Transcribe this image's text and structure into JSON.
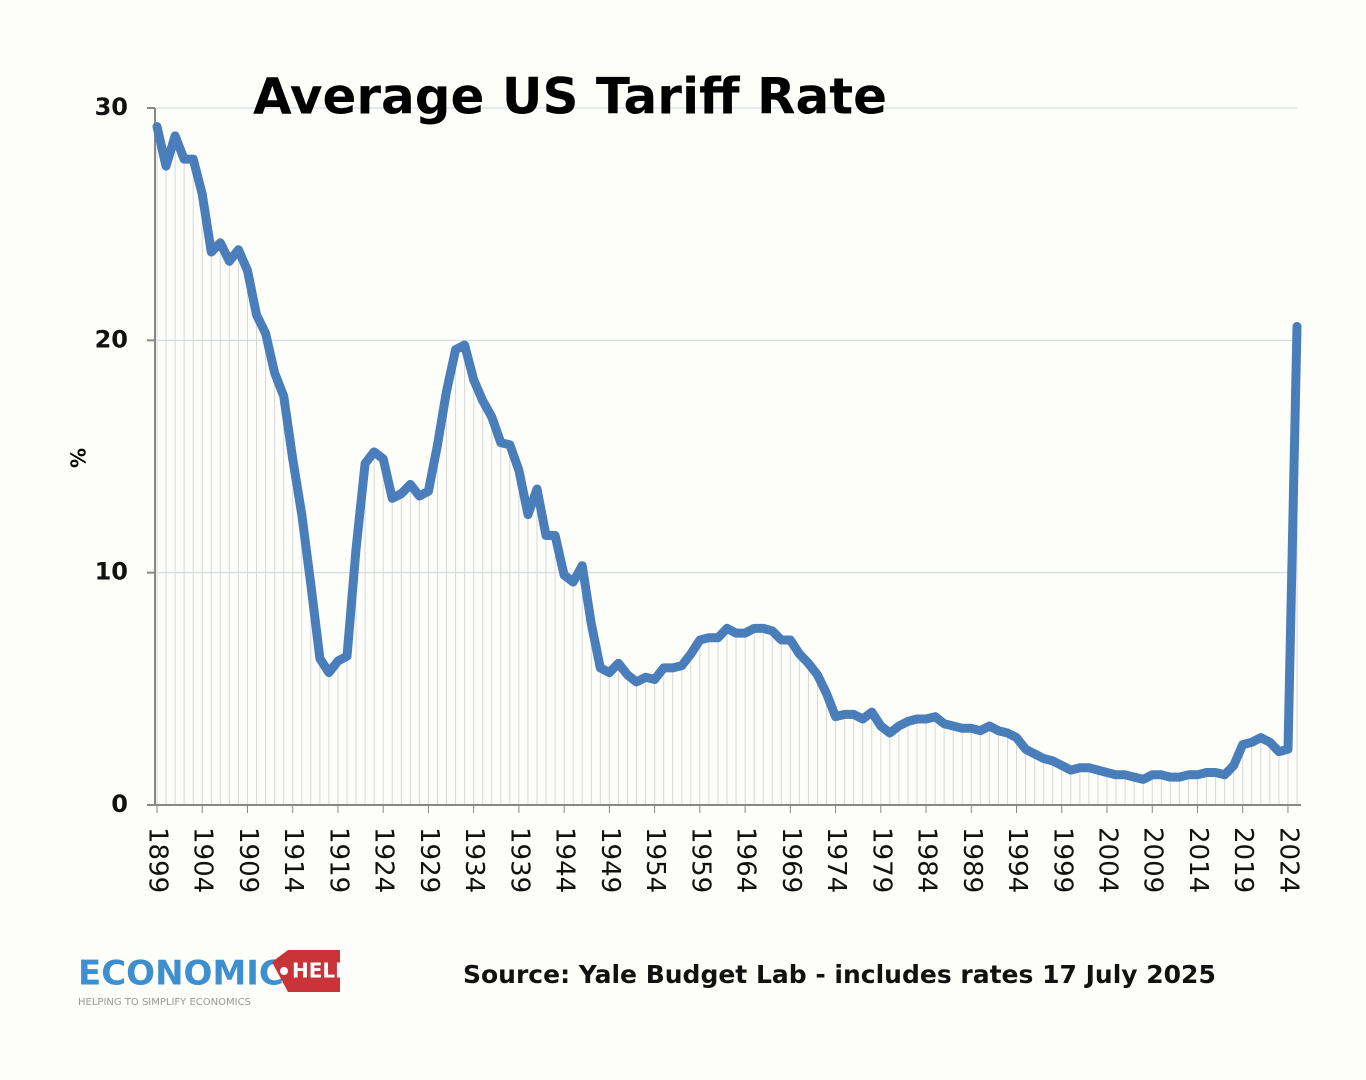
{
  "chart_data": {
    "type": "line",
    "title": "Average US Tariff Rate",
    "y_label": "%",
    "source": "Source: Yale Budget Lab - includes rates 17 July 2025",
    "logo": {
      "name": "ECONOMICS",
      "badge": "HELP",
      "tagline": "HELPING TO SIMPLIFY ECONOMICS"
    },
    "x": [
      1899,
      1900,
      1901,
      1902,
      1903,
      1904,
      1905,
      1906,
      1907,
      1908,
      1909,
      1910,
      1911,
      1912,
      1913,
      1914,
      1915,
      1916,
      1917,
      1918,
      1919,
      1920,
      1921,
      1922,
      1923,
      1924,
      1925,
      1926,
      1927,
      1928,
      1929,
      1930,
      1931,
      1932,
      1933,
      1934,
      1935,
      1936,
      1937,
      1938,
      1939,
      1940,
      1941,
      1942,
      1943,
      1944,
      1945,
      1946,
      1947,
      1948,
      1949,
      1950,
      1951,
      1952,
      1953,
      1954,
      1955,
      1956,
      1957,
      1958,
      1959,
      1960,
      1961,
      1962,
      1963,
      1964,
      1965,
      1966,
      1967,
      1968,
      1969,
      1970,
      1971,
      1972,
      1973,
      1974,
      1975,
      1976,
      1977,
      1978,
      1979,
      1980,
      1981,
      1982,
      1983,
      1984,
      1985,
      1986,
      1987,
      1988,
      1989,
      1990,
      1991,
      1992,
      1993,
      1994,
      1995,
      1996,
      1997,
      1998,
      1999,
      2000,
      2001,
      2002,
      2003,
      2004,
      2005,
      2006,
      2007,
      2008,
      2009,
      2010,
      2011,
      2012,
      2013,
      2014,
      2015,
      2016,
      2017,
      2018,
      2019,
      2020,
      2021,
      2022,
      2023,
      2024,
      2025
    ],
    "series": [
      {
        "name": "Average tariff rate",
        "color": "#4a7ebb",
        "values": [
          29.2,
          27.5,
          28.8,
          27.8,
          27.8,
          26.3,
          23.8,
          24.2,
          23.4,
          23.9,
          23.0,
          21.1,
          20.3,
          18.6,
          17.6,
          14.9,
          12.5,
          9.5,
          6.3,
          5.7,
          6.2,
          6.4,
          11.0,
          14.7,
          15.2,
          14.9,
          13.2,
          13.4,
          13.8,
          13.3,
          13.5,
          15.5,
          17.8,
          19.6,
          19.8,
          18.3,
          17.4,
          16.7,
          15.6,
          15.5,
          14.4,
          12.5,
          13.6,
          11.6,
          11.6,
          9.9,
          9.6,
          10.3,
          7.8,
          5.9,
          5.7,
          6.1,
          5.6,
          5.3,
          5.5,
          5.4,
          5.9,
          5.9,
          6.0,
          6.5,
          7.1,
          7.2,
          7.2,
          7.6,
          7.4,
          7.4,
          7.6,
          7.6,
          7.5,
          7.1,
          7.1,
          6.5,
          6.1,
          5.6,
          4.8,
          3.8,
          3.9,
          3.9,
          3.7,
          4.0,
          3.4,
          3.1,
          3.4,
          3.6,
          3.7,
          3.7,
          3.8,
          3.5,
          3.4,
          3.3,
          3.3,
          3.2,
          3.4,
          3.2,
          3.1,
          2.9,
          2.4,
          2.2,
          2.0,
          1.9,
          1.7,
          1.5,
          1.6,
          1.6,
          1.5,
          1.4,
          1.3,
          1.3,
          1.2,
          1.1,
          1.3,
          1.3,
          1.2,
          1.2,
          1.3,
          1.3,
          1.4,
          1.4,
          1.3,
          1.7,
          2.6,
          2.7,
          2.9,
          2.7,
          2.3,
          2.4,
          20.6
        ]
      }
    ],
    "xlim": [
      1899,
      2025
    ],
    "xticks": [
      1899,
      1904,
      1909,
      1914,
      1919,
      1924,
      1929,
      1934,
      1939,
      1944,
      1949,
      1954,
      1959,
      1964,
      1969,
      1974,
      1979,
      1984,
      1989,
      1994,
      1999,
      2004,
      2009,
      2014,
      2019,
      2024
    ],
    "ylim": [
      0,
      30
    ],
    "yticks": [
      0,
      10,
      20,
      30
    ],
    "grid": true,
    "drop_lines": true
  }
}
